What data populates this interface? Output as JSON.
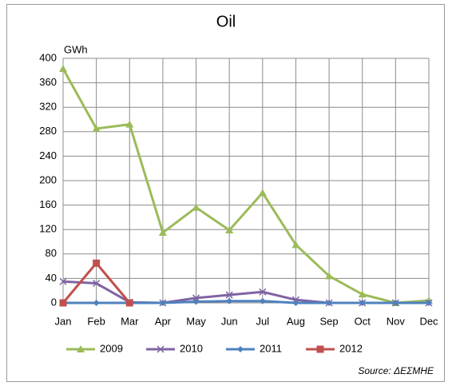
{
  "chart_data": {
    "type": "line",
    "title": "Oil",
    "ylabel": "GWh",
    "categories": [
      "Jan",
      "Feb",
      "Mar",
      "Apr",
      "May",
      "Jun",
      "Jul",
      "Aug",
      "Sep",
      "Oct",
      "Nov",
      "Dec"
    ],
    "series": [
      {
        "name": "2009",
        "color": "#9bbb59",
        "marker": "triangle",
        "values": [
          383,
          285,
          292,
          115,
          156,
          119,
          180,
          95,
          44,
          14,
          0,
          4
        ]
      },
      {
        "name": "2010",
        "color": "#8064a2",
        "marker": "x",
        "values": [
          35,
          32,
          1,
          0,
          8,
          13,
          18,
          5,
          0,
          0,
          0,
          0
        ]
      },
      {
        "name": "2011",
        "color": "#4f81bd",
        "marker": "diamond",
        "values": [
          0,
          0,
          0,
          0,
          2,
          3,
          3,
          0,
          0,
          0,
          0,
          0
        ]
      },
      {
        "name": "2012",
        "color": "#c0504d",
        "marker": "square",
        "values": [
          0,
          65,
          0,
          null,
          null,
          null,
          null,
          null,
          null,
          null,
          null,
          null
        ]
      }
    ],
    "ylim": [
      0,
      400
    ],
    "yticks": [
      0,
      40,
      80,
      120,
      160,
      200,
      240,
      280,
      320,
      360,
      400
    ],
    "grid": true,
    "legend": "bottom",
    "annotation": "Source: ΔΕΣΜΗΕ"
  }
}
